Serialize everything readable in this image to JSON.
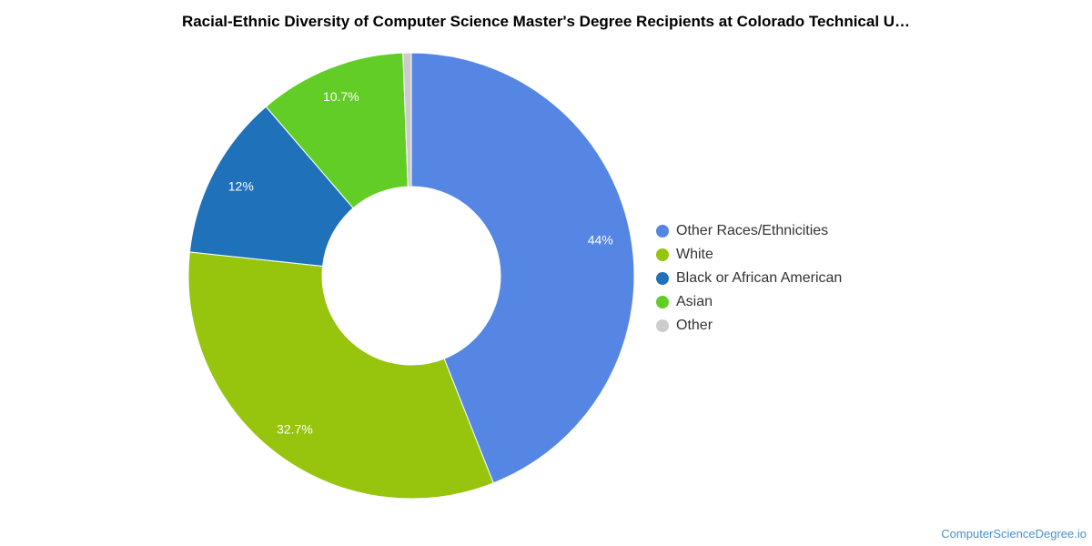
{
  "credit": "ComputerScienceDegree.io",
  "chart_data": {
    "type": "pie",
    "donut": true,
    "title": "Racial-Ethnic Diversity of Computer Science Master's Degree Recipients at Colorado Technical U…",
    "legend_position": "right",
    "slices": [
      {
        "name": "Other Races/Ethnicities",
        "value": 44.0,
        "label": "44%",
        "color": "#5586e4"
      },
      {
        "name": "White",
        "value": 32.7,
        "label": "32.7%",
        "color": "#97c40d"
      },
      {
        "name": "Black or African American",
        "value": 12.0,
        "label": "12%",
        "color": "#1f72ba"
      },
      {
        "name": "Asian",
        "value": 10.7,
        "label": "10.7%",
        "color": "#62cd26"
      },
      {
        "name": "Other",
        "value": 0.6,
        "label": "",
        "color": "#cccccc"
      }
    ]
  }
}
